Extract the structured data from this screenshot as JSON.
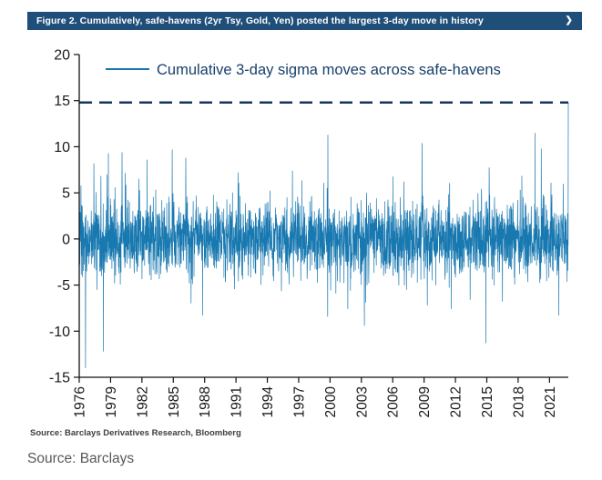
{
  "header": {
    "label": "Figure 2. Cumulatively, safe-havens (2yr Tsy, Gold, Yen) posted the largest 3-day move in history",
    "chevron": "❯",
    "bg_color": "#1f4e79"
  },
  "chart_data": {
    "type": "line",
    "legend": "Cumulative 3-day sigma moves across safe-havens",
    "series_color": "#1878b0",
    "dashed_line": {
      "y": 14.8,
      "color": "#17365d"
    },
    "ylim": [
      -15,
      20
    ],
    "yticks": [
      20,
      15,
      10,
      5,
      0,
      -5,
      -10,
      -15
    ],
    "xticks": [
      1976,
      1979,
      1982,
      1985,
      1988,
      1991,
      1994,
      1997,
      2000,
      2003,
      2006,
      2009,
      2012,
      2015,
      2018,
      2021
    ],
    "x_range": [
      1976,
      2022.8
    ],
    "noise": {
      "seed": 20220314,
      "points": 2800,
      "sd": 2.0,
      "fat_tail_prob": 0.05,
      "fat_tail_mult": 1.8
    },
    "notable_points": [
      {
        "x": 1976.6,
        "y": -14.0
      },
      {
        "x": 1977.4,
        "y": 8.2
      },
      {
        "x": 1978.3,
        "y": -12.2
      },
      {
        "x": 1978.8,
        "y": 9.3
      },
      {
        "x": 1980.1,
        "y": 9.4
      },
      {
        "x": 1982.5,
        "y": 8.6
      },
      {
        "x": 1984.9,
        "y": 9.7
      },
      {
        "x": 1986.2,
        "y": 8.8
      },
      {
        "x": 1987.8,
        "y": -8.3
      },
      {
        "x": 1991.2,
        "y": 7.2
      },
      {
        "x": 1996.4,
        "y": 7.4
      },
      {
        "x": 1999.8,
        "y": 11.3
      },
      {
        "x": 2001.7,
        "y": -7.6
      },
      {
        "x": 2003.4,
        "y": -6.9
      },
      {
        "x": 2008.8,
        "y": 10.4
      },
      {
        "x": 2009.3,
        "y": -7.2
      },
      {
        "x": 2011.6,
        "y": -7.6
      },
      {
        "x": 2013.4,
        "y": -6.6
      },
      {
        "x": 2014.9,
        "y": -11.3
      },
      {
        "x": 2016.5,
        "y": -6.8
      },
      {
        "x": 2019.6,
        "y": 11.5
      },
      {
        "x": 2020.2,
        "y": 9.8
      },
      {
        "x": 2021.9,
        "y": -8.3
      },
      {
        "x": 2022.8,
        "y": 14.8
      }
    ]
  },
  "footnote": "Source: Barclays Derivatives Research, Bloomberg",
  "caption": "Source: Barclays"
}
